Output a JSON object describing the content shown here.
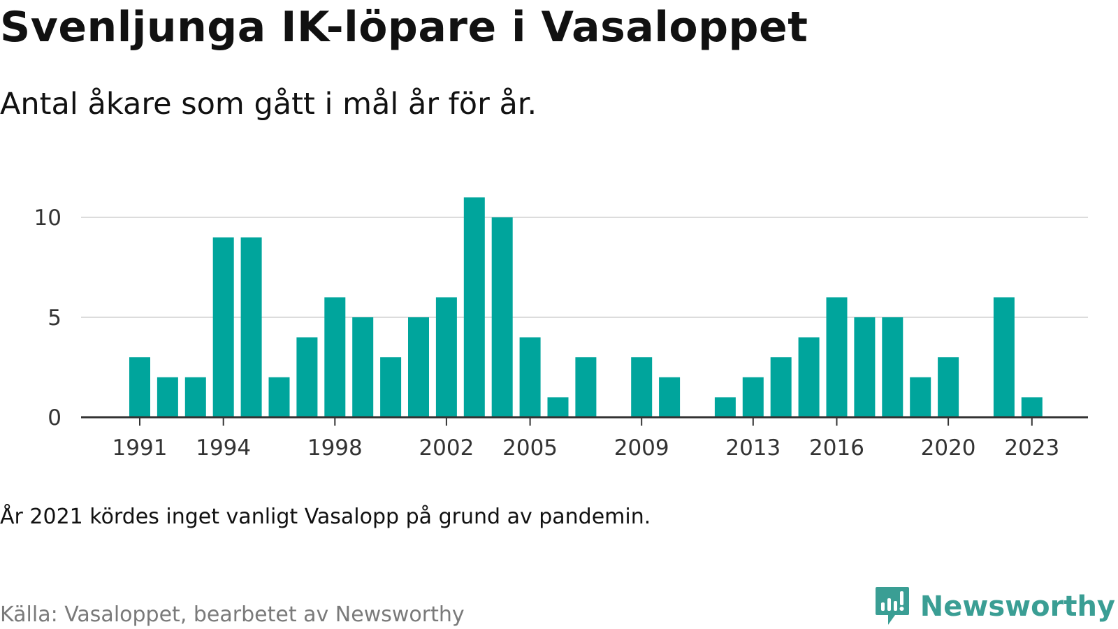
{
  "header": {
    "title": "Svenljunga IK-löpare i Vasaloppet",
    "subtitle": "Antal åkare som gått i mål år för år."
  },
  "footer": {
    "note": "År 2021 kördes inget vanligt Vasalopp på grund av pandemin.",
    "source": "Källa: Vasaloppet, bearbetet av Newsworthy",
    "brand": "Newsworthy",
    "brand_icon": "newsworthy-logo-icon",
    "brand_color": "#3a9e94"
  },
  "chart_data": {
    "type": "bar",
    "title": "Svenljunga IK-löpare i Vasaloppet",
    "subtitle": "Antal åkare som gått i mål år för år.",
    "xlabel": "",
    "ylabel": "",
    "categories": [
      1991,
      1992,
      1993,
      1994,
      1995,
      1996,
      1997,
      1998,
      1999,
      2000,
      2001,
      2002,
      2003,
      2004,
      2005,
      2006,
      2007,
      2008,
      2009,
      2010,
      2011,
      2012,
      2013,
      2014,
      2015,
      2016,
      2017,
      2018,
      2019,
      2020,
      2021,
      2022,
      2023
    ],
    "values": [
      3,
      2,
      2,
      9,
      9,
      2,
      4,
      6,
      5,
      3,
      5,
      6,
      11,
      10,
      4,
      1,
      3,
      0,
      3,
      2,
      0,
      1,
      2,
      3,
      4,
      6,
      5,
      5,
      2,
      3,
      0,
      6,
      1
    ],
    "x_tick_labels": [
      "1991",
      "1994",
      "1998",
      "2002",
      "2005",
      "2009",
      "2013",
      "2016",
      "2020",
      "2023"
    ],
    "y_ticks": [
      0,
      5,
      10
    ],
    "ylim": [
      0,
      11
    ],
    "grid": true,
    "bar_color": "#00a59c"
  }
}
